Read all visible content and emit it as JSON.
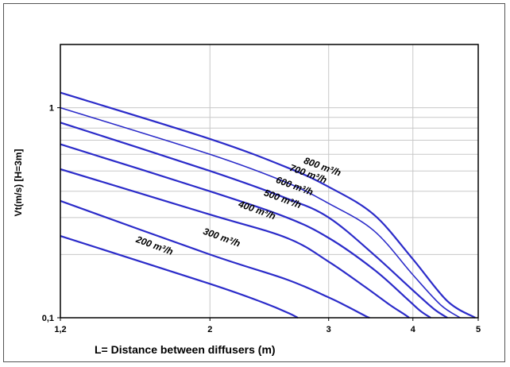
{
  "chart_data": {
    "type": "line",
    "x_scale": "log",
    "y_scale": "log",
    "xlim": [
      1.2,
      5
    ],
    "ylim": [
      0.1,
      2
    ],
    "x_ticks": [
      {
        "value": 1.2,
        "label": "1,2"
      },
      {
        "value": 2,
        "label": "2"
      },
      {
        "value": 3,
        "label": "3"
      },
      {
        "value": 4,
        "label": "4"
      },
      {
        "value": 5,
        "label": "5"
      }
    ],
    "y_ticks": [
      {
        "value": 0.1,
        "label": "0,1"
      },
      {
        "value": 1,
        "label": "1"
      }
    ],
    "xlabel": "L= Distance between diffusers (m)",
    "ylabel": "Vt(m/s) [H=3m]",
    "grid": true,
    "series": [
      {
        "name": "800 m³/h",
        "x": [
          1.2,
          2.0,
          2.6,
          3.0,
          3.5,
          4.0,
          4.5,
          4.95
        ],
        "y": [
          1.18,
          0.71,
          0.52,
          0.42,
          0.31,
          0.19,
          0.12,
          0.1
        ]
      },
      {
        "name": "700 m³/h",
        "x": [
          1.2,
          2.0,
          2.6,
          3.0,
          3.5,
          4.0,
          4.4,
          4.7
        ],
        "y": [
          1.0,
          0.6,
          0.44,
          0.35,
          0.26,
          0.16,
          0.115,
          0.1
        ]
      },
      {
        "name": "600 m³/h",
        "x": [
          1.2,
          2.0,
          2.6,
          3.0,
          3.5,
          4.0,
          4.3,
          4.5
        ],
        "y": [
          0.85,
          0.5,
          0.37,
          0.3,
          0.2,
          0.135,
          0.11,
          0.1
        ]
      },
      {
        "name": "500 m³/h",
        "x": [
          1.2,
          2.0,
          2.6,
          3.0,
          3.5,
          3.9,
          4.1,
          4.25
        ],
        "y": [
          0.67,
          0.4,
          0.3,
          0.24,
          0.17,
          0.125,
          0.108,
          0.1
        ]
      },
      {
        "name": "400 m³/h",
        "x": [
          1.2,
          2.0,
          2.6,
          3.0,
          3.4,
          3.7,
          3.9,
          3.95
        ],
        "y": [
          0.51,
          0.31,
          0.24,
          0.185,
          0.14,
          0.115,
          0.103,
          0.1
        ]
      },
      {
        "name": "300 m³/h",
        "x": [
          1.2,
          2.0,
          2.6,
          3.0,
          3.2,
          3.4,
          3.45
        ],
        "y": [
          0.36,
          0.2,
          0.152,
          0.125,
          0.113,
          0.102,
          0.1
        ]
      },
      {
        "name": "200 m³/h",
        "x": [
          1.2,
          2.0,
          2.4,
          2.62,
          2.7
        ],
        "y": [
          0.245,
          0.145,
          0.118,
          0.105,
          0.1
        ]
      }
    ],
    "line_color": "#2b2bc9"
  }
}
